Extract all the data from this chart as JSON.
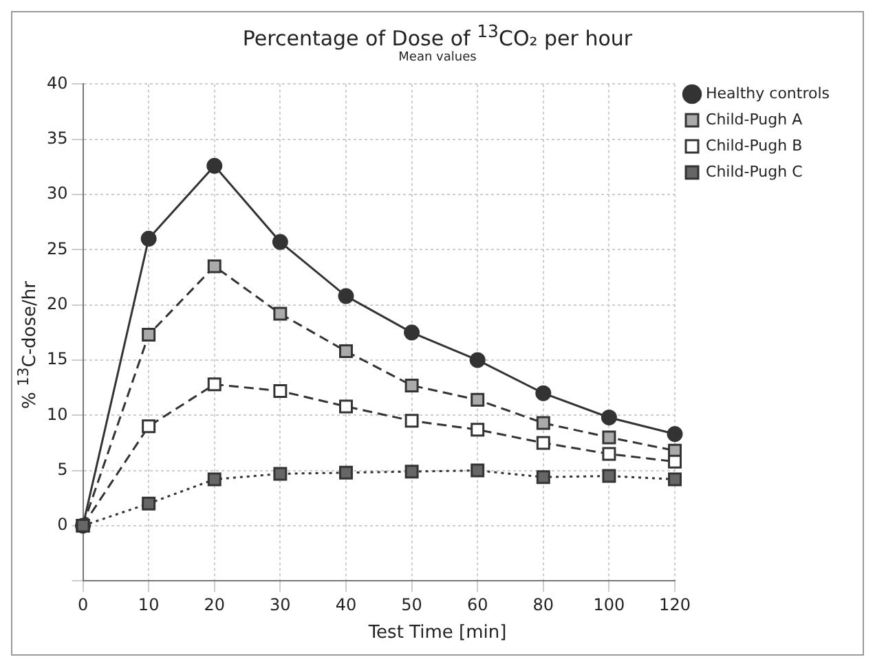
{
  "chart_data": {
    "type": "line",
    "title": "Percentage of Dose of $^{13}$CO₂ per hour",
    "subtitle": "Mean values",
    "xlabel": "Test Time [min]",
    "ylabel": "% $^{13}$C-dose/hr",
    "categories": [
      "0",
      "10",
      "20",
      "30",
      "40",
      "50",
      "60",
      "80",
      "100",
      "120"
    ],
    "ylim": [
      -5,
      40
    ],
    "yticks": [
      {
        "value": -5,
        "label": null
      },
      0,
      5,
      10,
      15,
      20,
      25,
      30,
      35,
      40
    ],
    "grid": true,
    "legend": "top right",
    "series": [
      {
        "name": "Healthy controls",
        "color": "#333333",
        "marker": "circle",
        "line_style": "solid",
        "values": [
          0,
          26,
          32.6,
          25.7,
          20.8,
          17.5,
          15,
          12,
          9.8,
          8.3
        ]
      },
      {
        "name": "Child-Pugh A",
        "color": "#aaaaaa",
        "marker": "square",
        "line_style": "dashed",
        "values": [
          0,
          17.3,
          23.5,
          19.2,
          15.8,
          12.7,
          11.4,
          9.3,
          8,
          6.8
        ]
      },
      {
        "name": "Child-Pugh B",
        "color": "#ffffff",
        "marker": "square",
        "line_style": "dashed",
        "values": [
          0,
          9,
          12.8,
          12.2,
          10.8,
          9.5,
          8.7,
          7.5,
          6.5,
          5.8
        ]
      },
      {
        "name": "Child-Pugh C",
        "color": "#666666",
        "marker": "square",
        "line_style": "dotted",
        "values": [
          0,
          2,
          4.2,
          4.7,
          4.8,
          4.9,
          5,
          4.4,
          4.5,
          4.2
        ]
      }
    ]
  }
}
